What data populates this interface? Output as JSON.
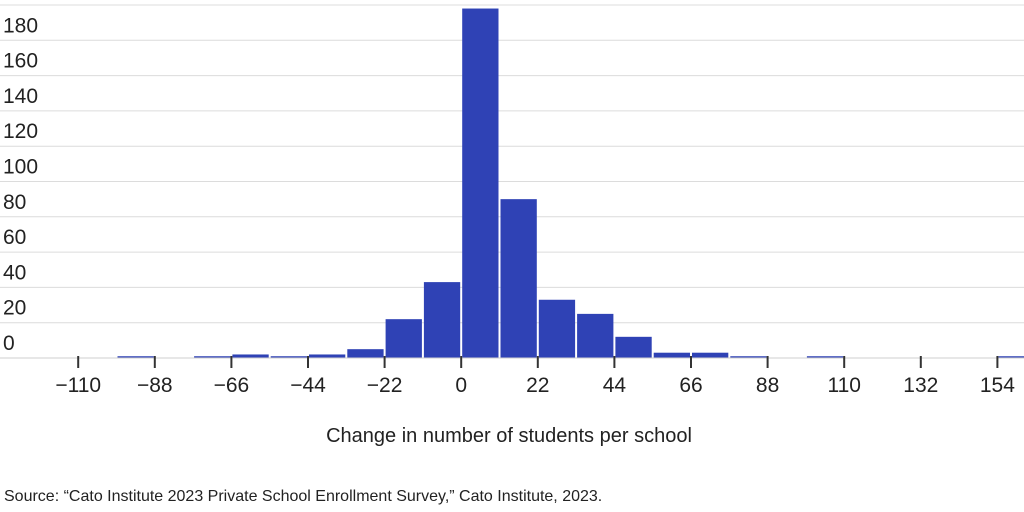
{
  "chart_data": {
    "type": "bar",
    "title": "",
    "xlabel": "Change in number of students per school",
    "ylabel": "",
    "bin_width": 11,
    "bins": [
      {
        "start": -99,
        "value": 1
      },
      {
        "start": -77,
        "value": 1
      },
      {
        "start": -66,
        "value": 2
      },
      {
        "start": -55,
        "value": 1
      },
      {
        "start": -44,
        "value": 2
      },
      {
        "start": -33,
        "value": 5
      },
      {
        "start": -22,
        "value": 22
      },
      {
        "start": -11,
        "value": 43
      },
      {
        "start": 0,
        "value": 198
      },
      {
        "start": 11,
        "value": 90
      },
      {
        "start": 22,
        "value": 33
      },
      {
        "start": 33,
        "value": 25
      },
      {
        "start": 44,
        "value": 12
      },
      {
        "start": 55,
        "value": 3
      },
      {
        "start": 66,
        "value": 3
      },
      {
        "start": 77,
        "value": 1
      },
      {
        "start": 99,
        "value": 1
      },
      {
        "start": 154,
        "value": 1
      }
    ],
    "x_ticks": [
      -110,
      -88,
      -66,
      -44,
      -22,
      0,
      22,
      44,
      66,
      88,
      110,
      132,
      154
    ],
    "x_tick_labels": [
      "−110",
      "−88",
      "−66",
      "−44",
      "−22",
      "0",
      "22",
      "44",
      "66",
      "88",
      "110",
      "132",
      "154"
    ],
    "y_ticks": [
      0,
      20,
      40,
      60,
      80,
      100,
      120,
      140,
      160,
      180
    ],
    "xlim": [
      -116,
      165
    ],
    "ylim": [
      0,
      200
    ],
    "grid": true,
    "bar_color": "#2f42b5",
    "source": "Source: “Cato Institute 2023 Private School Enrollment Survey,” Cato Institute, 2023."
  }
}
